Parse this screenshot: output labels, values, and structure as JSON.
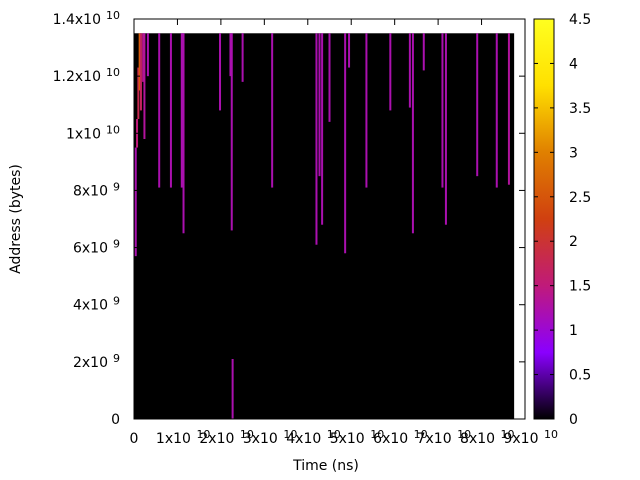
{
  "chart_data": {
    "type": "heatmap",
    "title": "",
    "xlabel": "Time (ns)",
    "ylabel": "Address (bytes)",
    "xlim": [
      0,
      90000000000
    ],
    "ylim": [
      0,
      14000000000
    ],
    "data_extent": {
      "x_max": 87500000000,
      "y_max": 13500000000
    },
    "background_value": 0,
    "x_ticks": [
      {
        "value": 0,
        "mantissa": "0",
        "exp": ""
      },
      {
        "value": 10000000000,
        "mantissa": "1x10",
        "exp": "10"
      },
      {
        "value": 20000000000,
        "mantissa": "2x10",
        "exp": "10"
      },
      {
        "value": 30000000000,
        "mantissa": "3x10",
        "exp": "10"
      },
      {
        "value": 40000000000,
        "mantissa": "4x10",
        "exp": "10"
      },
      {
        "value": 50000000000,
        "mantissa": "5x10",
        "exp": "10"
      },
      {
        "value": 60000000000,
        "mantissa": "6x10",
        "exp": "10"
      },
      {
        "value": 70000000000,
        "mantissa": "7x10",
        "exp": "10"
      },
      {
        "value": 80000000000,
        "mantissa": "8x10",
        "exp": "10"
      },
      {
        "value": 90000000000,
        "mantissa": "9x10",
        "exp": "10"
      }
    ],
    "y_ticks": [
      {
        "value": 0,
        "mantissa": "0",
        "exp": ""
      },
      {
        "value": 2000000000,
        "mantissa": "2x10",
        "exp": "9"
      },
      {
        "value": 4000000000,
        "mantissa": "4x10",
        "exp": "9"
      },
      {
        "value": 6000000000,
        "mantissa": "6x10",
        "exp": "9"
      },
      {
        "value": 8000000000,
        "mantissa": "8x10",
        "exp": "9"
      },
      {
        "value": 10000000000,
        "mantissa": "1x10",
        "exp": "10"
      },
      {
        "value": 12000000000,
        "mantissa": "1.2x10",
        "exp": "10"
      },
      {
        "value": 14000000000,
        "mantissa": "1.4x10",
        "exp": "10"
      }
    ],
    "colorbar": {
      "min": 0,
      "max": 4.5,
      "ticks": [
        "0",
        "0.5",
        "1",
        "1.5",
        "2",
        "2.5",
        "3",
        "3.5",
        "4",
        "4.5"
      ],
      "stops": [
        "#000000",
        "#8a00ff",
        "#c01a7a",
        "#d04010",
        "#e08000",
        "#ffe000",
        "#ffff20"
      ]
    },
    "cells": [
      {
        "x": 400000000,
        "y0": 5700000000,
        "y1": 9500000000,
        "value": 1.2
      },
      {
        "x": 700000000,
        "y0": 9500000000,
        "y1": 10500000000,
        "value": 1.5
      },
      {
        "x": 1000000000,
        "y0": 10500000000,
        "y1": 12300000000,
        "value": 1.8
      },
      {
        "x": 1300000000,
        "y0": 11500000000,
        "y1": 13500000000,
        "value": 2.6
      },
      {
        "x": 1600000000,
        "y0": 10800000000,
        "y1": 13500000000,
        "value": 1.7
      },
      {
        "x": 2100000000,
        "y0": 11800000000,
        "y1": 13500000000,
        "value": 1.4
      },
      {
        "x": 2400000000,
        "y0": 9800000000,
        "y1": 13500000000,
        "value": 1.3
      },
      {
        "x": 3200000000,
        "y0": 12000000000,
        "y1": 13500000000,
        "value": 1.2
      },
      {
        "x": 5800000000,
        "y0": 8100000000,
        "y1": 13500000000,
        "value": 1.2
      },
      {
        "x": 8500000000,
        "y0": 8100000000,
        "y1": 13500000000,
        "value": 1.2
      },
      {
        "x": 11000000000,
        "y0": 8100000000,
        "y1": 13500000000,
        "value": 1.2
      },
      {
        "x": 11400000000,
        "y0": 6500000000,
        "y1": 13500000000,
        "value": 1.2
      },
      {
        "x": 19800000000,
        "y0": 10800000000,
        "y1": 13500000000,
        "value": 1.2
      },
      {
        "x": 22200000000,
        "y0": 12000000000,
        "y1": 13500000000,
        "value": 1.2
      },
      {
        "x": 22500000000,
        "y0": 6600000000,
        "y1": 13500000000,
        "value": 1.2
      },
      {
        "x": 22700000000,
        "y0": 0,
        "y1": 2100000000,
        "value": 1.2
      },
      {
        "x": 25000000000,
        "y0": 11800000000,
        "y1": 13500000000,
        "value": 1.2
      },
      {
        "x": 31800000000,
        "y0": 8100000000,
        "y1": 13500000000,
        "value": 1.2
      },
      {
        "x": 42000000000,
        "y0": 6100000000,
        "y1": 13500000000,
        "value": 1.2
      },
      {
        "x": 42700000000,
        "y0": 8500000000,
        "y1": 13500000000,
        "value": 1.2
      },
      {
        "x": 43300000000,
        "y0": 6800000000,
        "y1": 13500000000,
        "value": 1.2
      },
      {
        "x": 45000000000,
        "y0": 10400000000,
        "y1": 13500000000,
        "value": 1.2
      },
      {
        "x": 48600000000,
        "y0": 5800000000,
        "y1": 13500000000,
        "value": 1.2
      },
      {
        "x": 49500000000,
        "y0": 12300000000,
        "y1": 13500000000,
        "value": 1.2
      },
      {
        "x": 53500000000,
        "y0": 8100000000,
        "y1": 13500000000,
        "value": 1.2
      },
      {
        "x": 59000000000,
        "y0": 10800000000,
        "y1": 13500000000,
        "value": 1.2
      },
      {
        "x": 63500000000,
        "y0": 10900000000,
        "y1": 13500000000,
        "value": 1.2
      },
      {
        "x": 64200000000,
        "y0": 6500000000,
        "y1": 13500000000,
        "value": 1.2
      },
      {
        "x": 66700000000,
        "y0": 12200000000,
        "y1": 13500000000,
        "value": 1.2
      },
      {
        "x": 71000000000,
        "y0": 8100000000,
        "y1": 13500000000,
        "value": 1.2
      },
      {
        "x": 71800000000,
        "y0": 6800000000,
        "y1": 13500000000,
        "value": 1.2
      },
      {
        "x": 79000000000,
        "y0": 8500000000,
        "y1": 13500000000,
        "value": 1.2
      },
      {
        "x": 83500000000,
        "y0": 8100000000,
        "y1": 13500000000,
        "value": 1.2
      },
      {
        "x": 86300000000,
        "y0": 8200000000,
        "y1": 13500000000,
        "value": 1.3
      }
    ]
  }
}
